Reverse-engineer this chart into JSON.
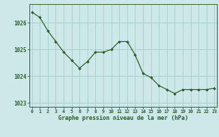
{
  "x": [
    0,
    1,
    2,
    3,
    4,
    5,
    6,
    7,
    8,
    9,
    10,
    11,
    12,
    13,
    14,
    15,
    16,
    17,
    18,
    19,
    20,
    21,
    22,
    23
  ],
  "y": [
    1026.4,
    1026.2,
    1025.7,
    1025.3,
    1024.9,
    1024.6,
    1024.3,
    1024.55,
    1024.9,
    1024.9,
    1025.0,
    1025.3,
    1025.3,
    1024.8,
    1024.1,
    1023.95,
    1023.65,
    1023.5,
    1023.35,
    1023.5,
    1023.5,
    1023.5,
    1023.5,
    1023.55
  ],
  "line_color": "#2d5a27",
  "marker_color": "#2d5a27",
  "bg_color": "#cce8e8",
  "grid_color": "#aacece",
  "xlabel": "Graphe pression niveau de la mer (hPa)",
  "xlabel_color": "#2d5a27",
  "tick_color": "#2d5a27",
  "ylim": [
    1022.85,
    1026.7
  ],
  "yticks": [
    1023,
    1024,
    1025,
    1026
  ],
  "xticks": [
    0,
    1,
    2,
    3,
    4,
    5,
    6,
    7,
    8,
    9,
    10,
    11,
    12,
    13,
    14,
    15,
    16,
    17,
    18,
    19,
    20,
    21,
    22,
    23
  ],
  "xlim": [
    -0.3,
    23.3
  ]
}
